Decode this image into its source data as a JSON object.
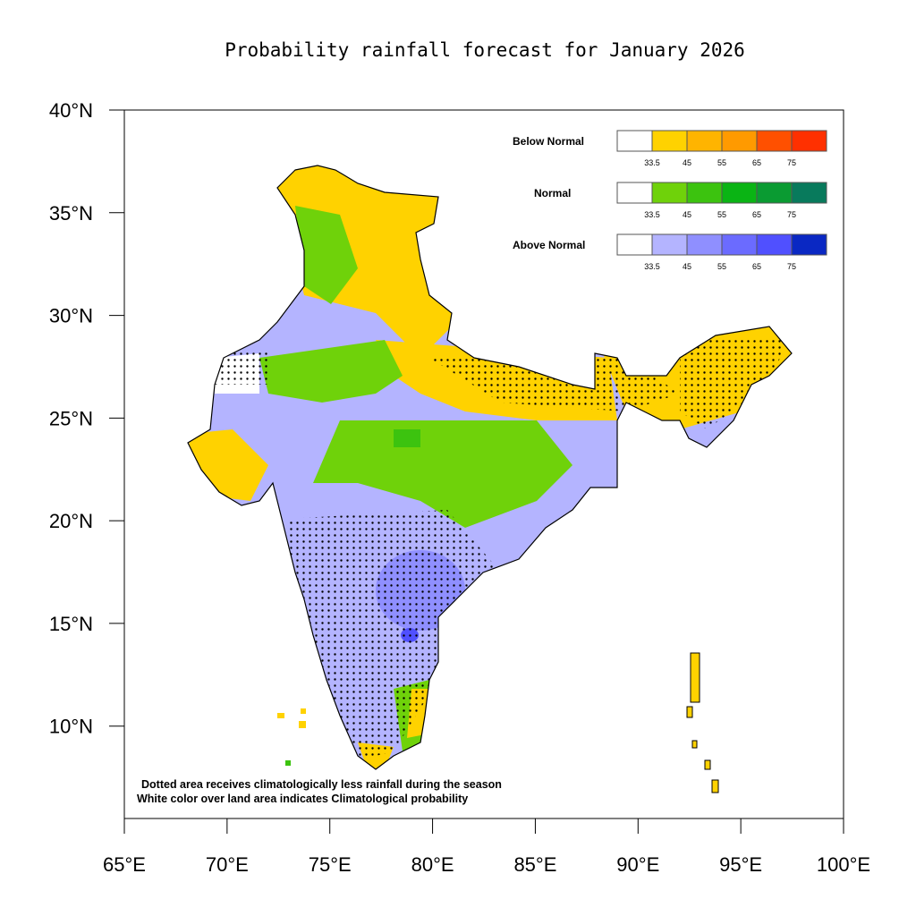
{
  "title": "Probability rainfall forecast for January 2026",
  "axes": {
    "lat_labels": [
      "40°N",
      "35°N",
      "30°N",
      "25°N",
      "20°N",
      "15°N",
      "10°N"
    ],
    "lat_values": [
      40,
      35,
      30,
      25,
      20,
      15,
      10
    ],
    "lon_labels": [
      "65°E",
      "70°E",
      "75°E",
      "80°E",
      "85°E",
      "90°E",
      "95°E",
      "100°E"
    ],
    "lon_values": [
      65,
      70,
      75,
      80,
      85,
      90,
      95,
      100
    ],
    "lon_range": [
      65,
      100
    ],
    "lat_range": [
      5.5,
      40
    ]
  },
  "legend": [
    {
      "title": "Below Normal",
      "colors": [
        "#ffffff",
        "#ffd200",
        "#ffb400",
        "#ff9a00",
        "#ff5000",
        "#ff3000"
      ],
      "ticks": [
        "33.5",
        "45",
        "55",
        "65",
        "75"
      ]
    },
    {
      "title": "Normal",
      "colors": [
        "#ffffff",
        "#6fd20a",
        "#3cc30f",
        "#0ab414",
        "#0a9b32",
        "#087a5c"
      ],
      "ticks": [
        "33.5",
        "45",
        "55",
        "65",
        "75"
      ]
    },
    {
      "title": "Above Normal",
      "colors": [
        "#ffffff",
        "#b4b4ff",
        "#8f8fff",
        "#6b6bff",
        "#5050ff",
        "#0a28c3"
      ],
      "ticks": [
        "33.5",
        "45",
        "55",
        "65",
        "75"
      ]
    }
  ],
  "notes": [
    "Dotted area receives climatologically less rainfall during the season",
    "White color over land area indicates Climatological probability"
  ]
}
